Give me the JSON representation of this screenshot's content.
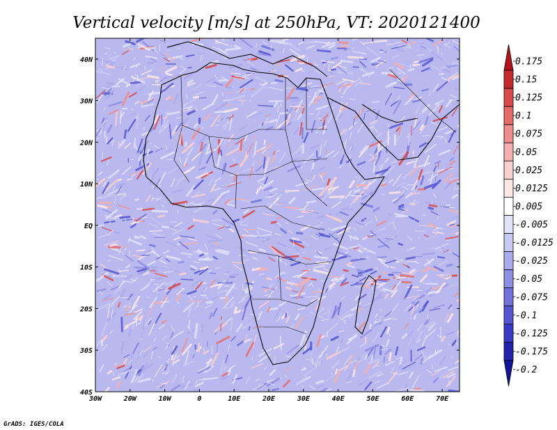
{
  "chart_data": {
    "type": "heatmap",
    "title": "Vertical velocity [m/s] at 250hPa, VT: 2020121400",
    "x_ticks": [
      "30W",
      "20W",
      "10W",
      "0",
      "10E",
      "20E",
      "30E",
      "40E",
      "50E",
      "60E",
      "70E"
    ],
    "x_tick_values": [
      -30,
      -20,
      -10,
      0,
      10,
      20,
      30,
      40,
      50,
      60,
      70
    ],
    "y_ticks": [
      "40N",
      "30N",
      "20N",
      "10N",
      "EQ",
      "10S",
      "20S",
      "30S",
      "40S"
    ],
    "y_tick_values": [
      40,
      30,
      20,
      10,
      0,
      -10,
      -20,
      -30,
      -40
    ],
    "xlim": [
      -30,
      75
    ],
    "ylim": [
      -40,
      45
    ],
    "colorbar": {
      "labels": [
        "0.175",
        "0.15",
        "0.125",
        "0.1",
        "0.075",
        "0.05",
        "0.025",
        "0.0125",
        "0.005",
        "-0.005",
        "-0.0125",
        "-0.025",
        "-0.05",
        "-0.075",
        "-0.1",
        "-0.125",
        "-0.175",
        "-0.2"
      ],
      "colors": [
        "#b0141a",
        "#c42a2e",
        "#d84a4a",
        "#e66b6b",
        "#ee8e8e",
        "#f4b0b0",
        "#f9cfcf",
        "#fce6e6",
        "#ffffff",
        "#e2e2f8",
        "#c9c9f2",
        "#acacec",
        "#8f8fe4",
        "#7272dc",
        "#5656d2",
        "#3a3ac4",
        "#2222aa",
        "#141496"
      ]
    },
    "credit": "GrADS: IGES/COLA"
  }
}
